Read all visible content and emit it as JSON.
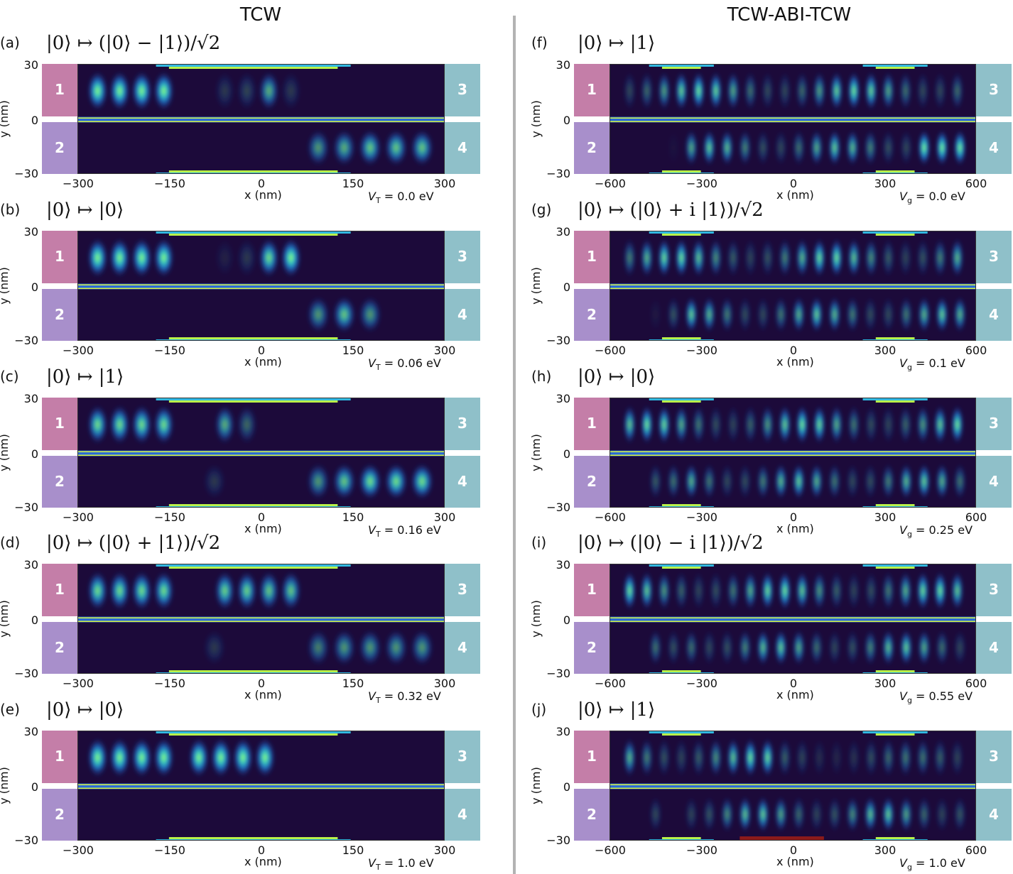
{
  "columns": {
    "left": "TCW",
    "right": "TCW-ABI-TCW"
  },
  "axis": {
    "ylabel": "y (nm)",
    "xlabel": "x (nm)",
    "yticks": [
      "30",
      "0",
      "−30"
    ]
  },
  "leads": [
    "1",
    "2",
    "3",
    "4"
  ],
  "left_xticks": [
    "−300",
    "−150",
    "0",
    "150",
    "300"
  ],
  "right_xticks": [
    "−600",
    "−300",
    "0",
    "300",
    "600"
  ],
  "panels": [
    {
      "label": "(a)",
      "map": "|0⟩ ↦ (|0⟩ − |1⟩)/√2",
      "vsym": "V",
      "vsub": "T",
      "vval": " = 0.0 eV"
    },
    {
      "label": "(b)",
      "map": "|0⟩ ↦ |0⟩",
      "vsym": "V",
      "vsub": "T",
      "vval": " = 0.06 eV"
    },
    {
      "label": "(c)",
      "map": "|0⟩ ↦ |1⟩",
      "vsym": "V",
      "vsub": "T",
      "vval": " = 0.16 eV"
    },
    {
      "label": "(d)",
      "map": "|0⟩ ↦ (|0⟩ + |1⟩)/√2",
      "vsym": "V",
      "vsub": "T",
      "vval": " = 0.32 eV"
    },
    {
      "label": "(e)",
      "map": "|0⟩ ↦ |0⟩",
      "vsym": "V",
      "vsub": "T",
      "vval": " = 1.0 eV"
    },
    {
      "label": "(f)",
      "map": "|0⟩ ↦ |1⟩",
      "vsym": "V",
      "vsub": "g",
      "vval": " = 0.0 eV"
    },
    {
      "label": "(g)",
      "map": "|0⟩ ↦ (|0⟩ + i |1⟩)/√2",
      "vsym": "V",
      "vsub": "g",
      "vval": " = 0.1 eV"
    },
    {
      "label": "(h)",
      "map": "|0⟩ ↦ |0⟩",
      "vsym": "V",
      "vsub": "g",
      "vval": " = 0.25 eV"
    },
    {
      "label": "(i)",
      "map": "|0⟩ ↦ (|0⟩ − i |1⟩)/√2",
      "vsym": "V",
      "vsub": "g",
      "vval": " = 0.55 eV"
    },
    {
      "label": "(j)",
      "map": "|0⟩ ↦ |1⟩",
      "vsym": "V",
      "vsub": "g",
      "vval": " = 1.0 eV"
    }
  ]
}
